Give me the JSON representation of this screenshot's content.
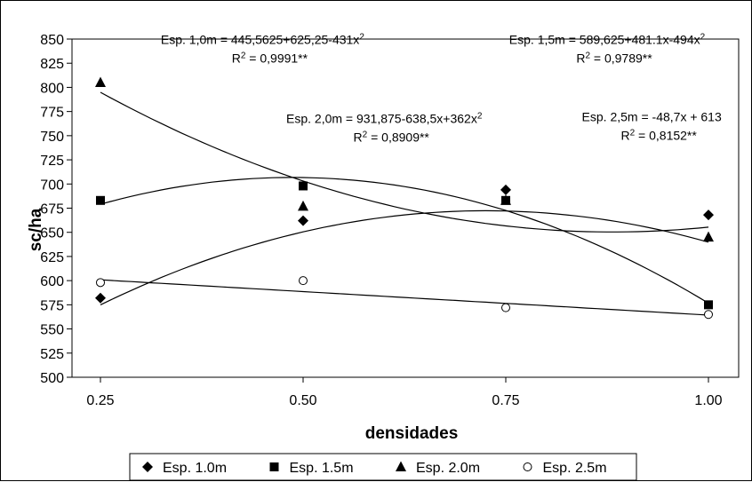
{
  "chart_data": {
    "type": "scatter",
    "xlabel": "densidades",
    "ylabel": "sc/ha",
    "x": [
      0.25,
      0.5,
      0.75,
      1.0
    ],
    "x_tick_labels": [
      "0.25",
      "0.50",
      "0.75",
      "1.00"
    ],
    "ylim": [
      500,
      850
    ],
    "y_ticks": [
      500,
      525,
      550,
      575,
      600,
      625,
      650,
      675,
      700,
      725,
      750,
      775,
      800,
      825,
      850
    ],
    "grid": false,
    "legend_position": "bottom",
    "series": [
      {
        "name": "Esp. 1.0m",
        "marker": "diamond",
        "values": [
          582,
          662,
          694,
          668
        ],
        "fit": {
          "type": "quadratic",
          "coef": [
            445.5625,
            625.25,
            -431
          ]
        }
      },
      {
        "name": "Esp. 1.5m",
        "marker": "square",
        "values": [
          683,
          698,
          683,
          575
        ],
        "fit": {
          "type": "quadratic",
          "coef": [
            589.625,
            481.1,
            -494
          ]
        }
      },
      {
        "name": "Esp. 2.0m",
        "marker": "triangle",
        "values": [
          805,
          677,
          683,
          645
        ],
        "fit": {
          "type": "quadratic",
          "coef": [
            931.875,
            -638.5,
            362
          ]
        }
      },
      {
        "name": "Esp. 2.5m",
        "marker": "circle",
        "values": [
          598,
          600,
          572,
          565
        ],
        "fit": {
          "type": "linear",
          "coef": [
            613,
            -48.7
          ]
        }
      }
    ],
    "annotations": [
      {
        "eq": "Esp. 1,0m = 445,5625+625,25-431x",
        "sup": "2",
        "r2": "= 0,9991**",
        "x": 0.45,
        "y": 845,
        "anchor": "middle"
      },
      {
        "eq": "Esp. 1,5m = 589,625+481.1x-494x",
        "sup": "2",
        "r2": "= 0,9789**",
        "x": 0.875,
        "y": 845,
        "anchor": "middle"
      },
      {
        "eq": "Esp. 2,0m = 931,875-638,5x+362x",
        "sup": "2",
        "r2": "= 0,8909**",
        "x": 0.6,
        "y": 763,
        "anchor": "middle"
      },
      {
        "eq": "Esp. 2,5m = -48,7x + 613",
        "sup": "",
        "r2": "= 0,8152**",
        "x": 0.93,
        "y": 765,
        "anchor": "middle"
      }
    ]
  }
}
